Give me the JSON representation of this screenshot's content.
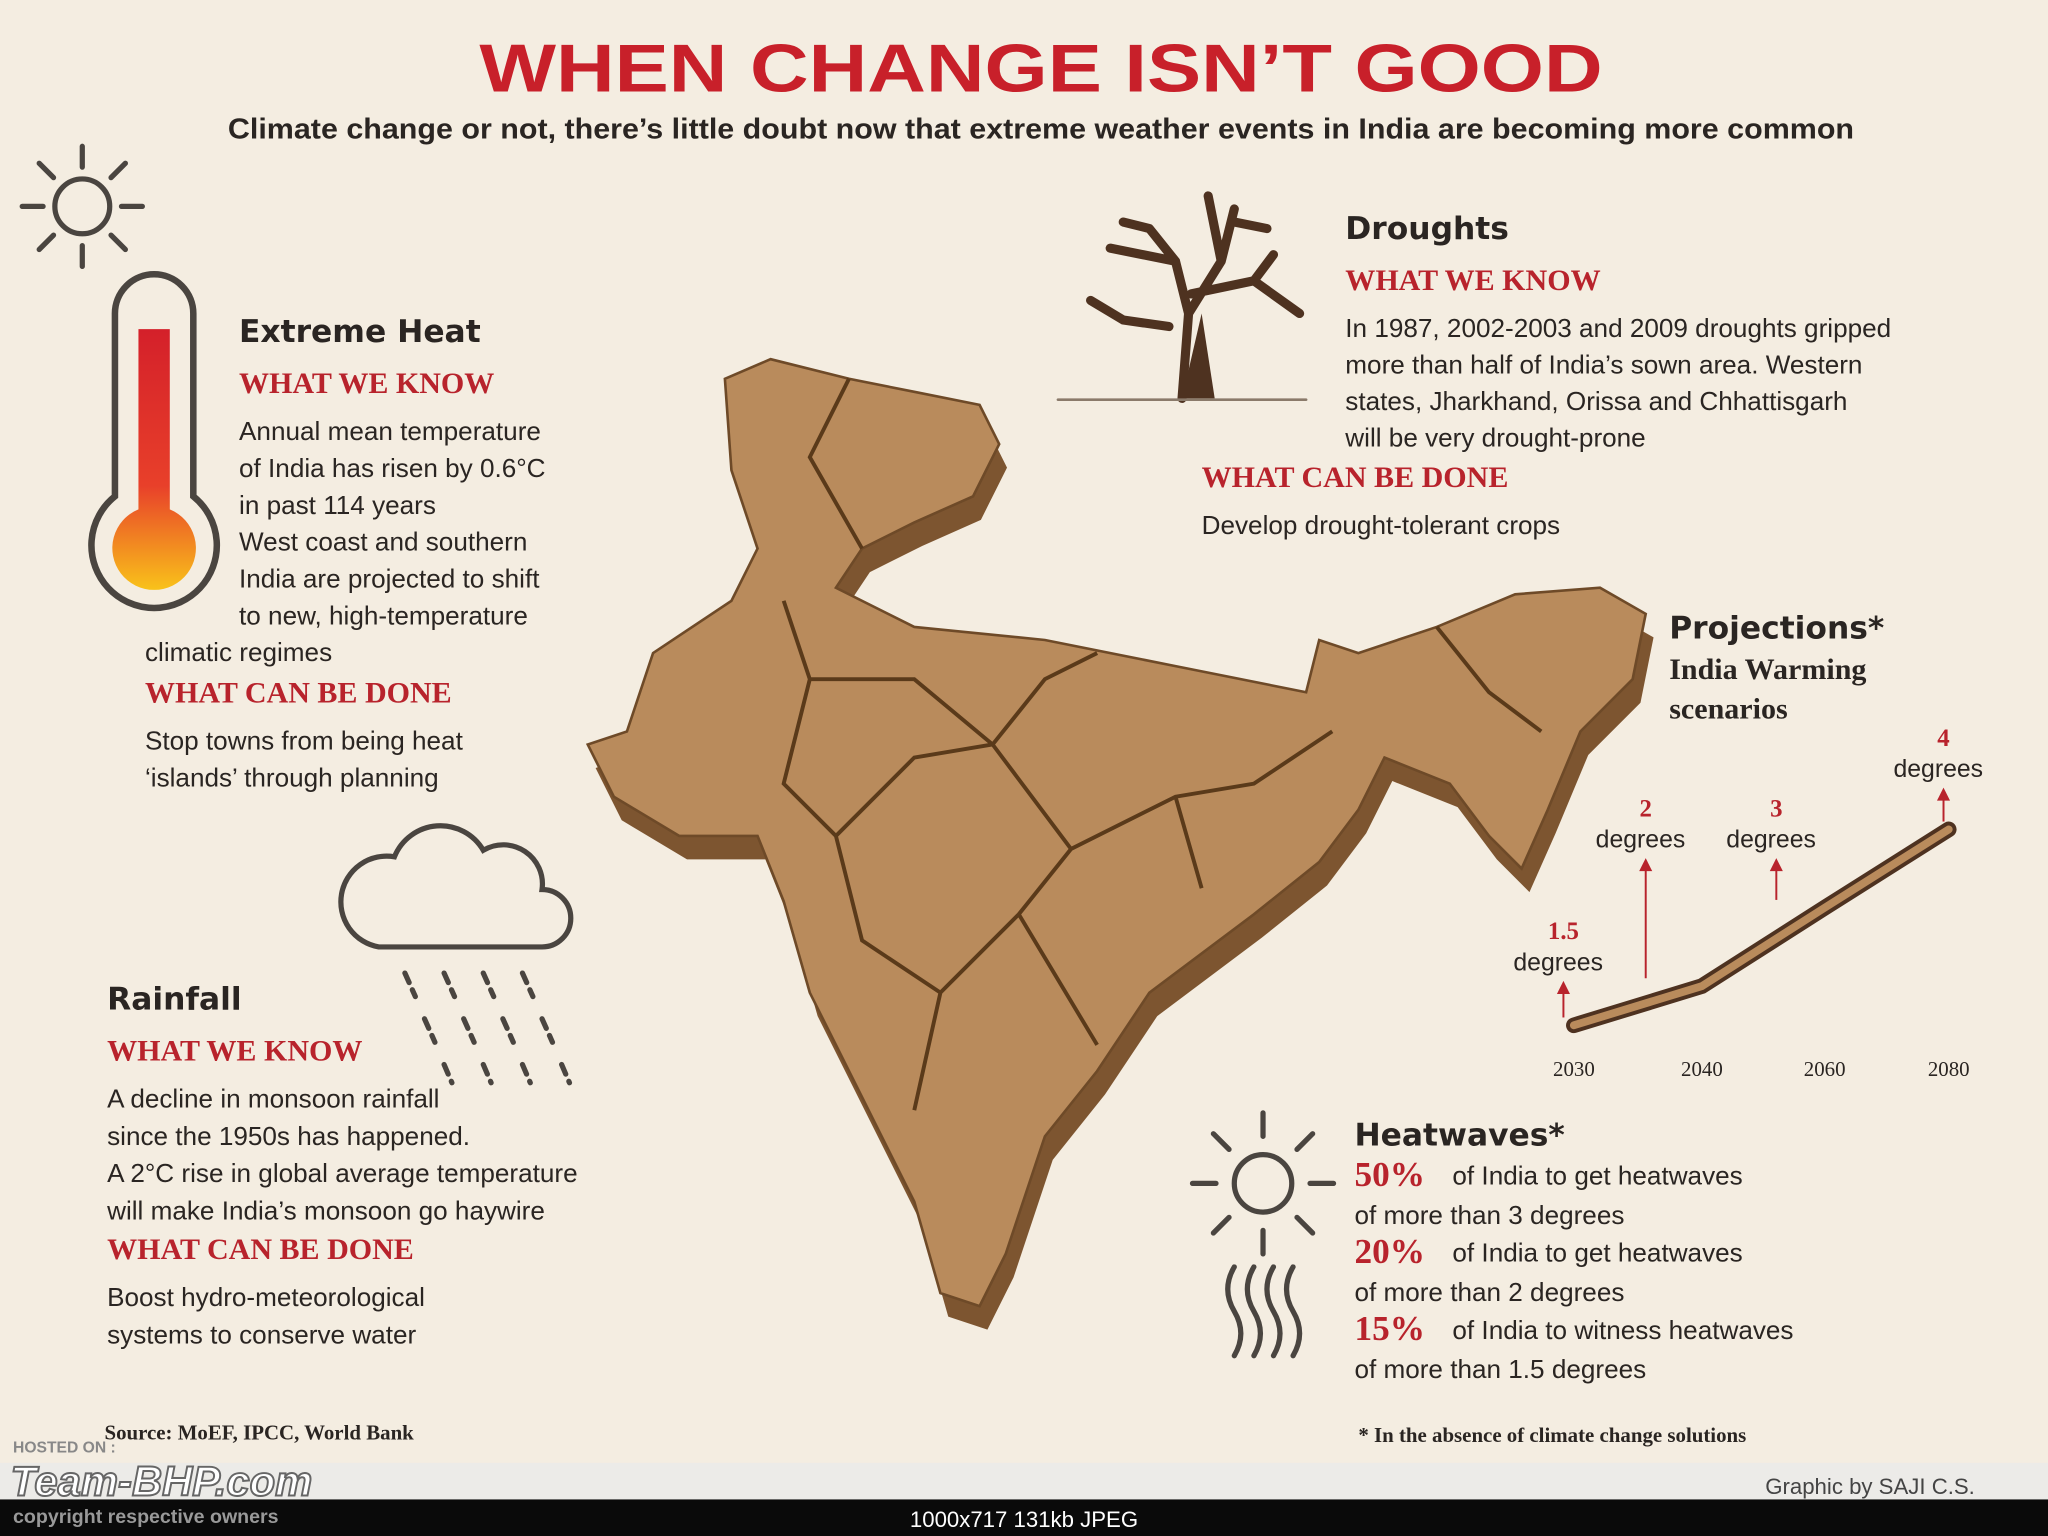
{
  "header": {
    "title": "WHEN CHANGE ISN’T GOOD",
    "subtitle": "Climate change or not, there’s little doubt now that extreme weather events in India are becoming more common"
  },
  "heat": {
    "title": "Extreme Heat",
    "know_label": "WHAT WE KNOW",
    "know": [
      "Annual mean temperature",
      "of India has risen by 0.6°C",
      "in past 114 years",
      "West coast and southern",
      "India are projected to shift",
      "to new, high-temperature",
      "climatic regimes"
    ],
    "done_label": "WHAT CAN BE DONE",
    "done": [
      "Stop towns from being heat",
      "‘islands’ through planning"
    ]
  },
  "droughts": {
    "title": "Droughts",
    "know_label": "WHAT WE KNOW",
    "know": [
      "In 1987, 2002-2003 and 2009 droughts gripped",
      "more than half of India’s sown area. Western",
      "states, Jharkhand, Orissa and Chhattisgarh",
      "will be very drought-prone"
    ],
    "done_label": "WHAT CAN BE DONE",
    "done": [
      "Develop drought-tolerant crops"
    ]
  },
  "rainfall": {
    "title": "Rainfall",
    "know_label": "WHAT WE KNOW",
    "know": [
      "A decline in monsoon rainfall",
      "since the 1950s has happened.",
      "A 2°C rise in global average temperature",
      "will make India’s monsoon go haywire"
    ],
    "done_label": "WHAT CAN BE DONE",
    "done": [
      "Boost hydro-meteorological",
      "systems to conserve water"
    ]
  },
  "projections": {
    "title": "Projections*",
    "subtitle": [
      "India Warming",
      "scenarios"
    ],
    "years": [
      "2030",
      "2040",
      "2060",
      "2080"
    ],
    "values": [
      1.5,
      2,
      3,
      4
    ],
    "unit": "degrees"
  },
  "heatwaves": {
    "title": "Heatwaves*",
    "items": [
      {
        "pct": "50%",
        "lines": [
          "of India to get heatwaves",
          "of more than 3 degrees"
        ]
      },
      {
        "pct": "20%",
        "lines": [
          "of India to get heatwaves",
          "of more than 2 degrees"
        ]
      },
      {
        "pct": "15%",
        "lines": [
          "of India to witness heatwaves",
          "of more than 1.5 degrees"
        ]
      }
    ]
  },
  "footnote": "* In the absence of climate change solutions",
  "source": "Source: MoEF, IPCC, World Bank",
  "credit": "Graphic by SAJI C.S.",
  "watermark": {
    "hosted": "HOSTED ON :",
    "site": "Team-BHP.com",
    "copyright": "copyright respective owners"
  },
  "image_info": "1000x717 131kb JPEG"
}
